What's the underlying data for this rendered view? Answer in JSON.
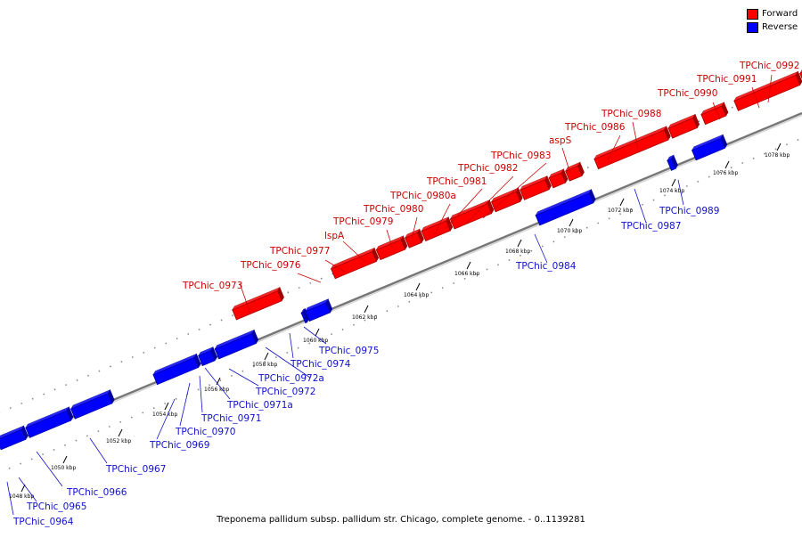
{
  "legend": {
    "forward": {
      "label": "Forward",
      "color": "#ff0000"
    },
    "reverse": {
      "label": "Reverse",
      "color": "#0000ff"
    }
  },
  "footer": {
    "title": "Treponema pallidum subsp. pallidum str. Chicago, complete genome. - 0..1139281"
  },
  "axis": {
    "unit": "kbp",
    "ticks": [
      1048,
      1050,
      1052,
      1054,
      1056,
      1058,
      1060,
      1062,
      1064,
      1066,
      1068,
      1070,
      1072,
      1074,
      1076,
      1078
    ]
  },
  "genes": {
    "forward": [
      "TPChic_0973",
      "TPChic_0976",
      "TPChic_0977",
      "lspA",
      "TPChic_0979",
      "TPChic_0980",
      "TPChic_0980a",
      "TPChic_0981",
      "TPChic_0982",
      "TPChic_0983",
      "aspS",
      "TPChic_0986",
      "TPChic_0988",
      "TPChic_0990",
      "TPChic_0991",
      "TPChic_0992"
    ],
    "reverse": [
      "TPChic_0964",
      "TPChic_0965",
      "TPChic_0966",
      "TPChic_0967",
      "TPChic_0969",
      "TPChic_0970",
      "TPChic_0971",
      "TPChic_0971a",
      "TPChic_0972",
      "TPChic_0972a",
      "TPChic_0974",
      "TPChic_0975",
      "TPChic_0984",
      "TPChic_0987",
      "TPChic_0989"
    ]
  },
  "colors": {
    "forward": "#ff0000",
    "reverse": "#0000ff",
    "axis": "#777777",
    "forward_label": "#cc0000",
    "reverse_label": "#1010cc"
  }
}
